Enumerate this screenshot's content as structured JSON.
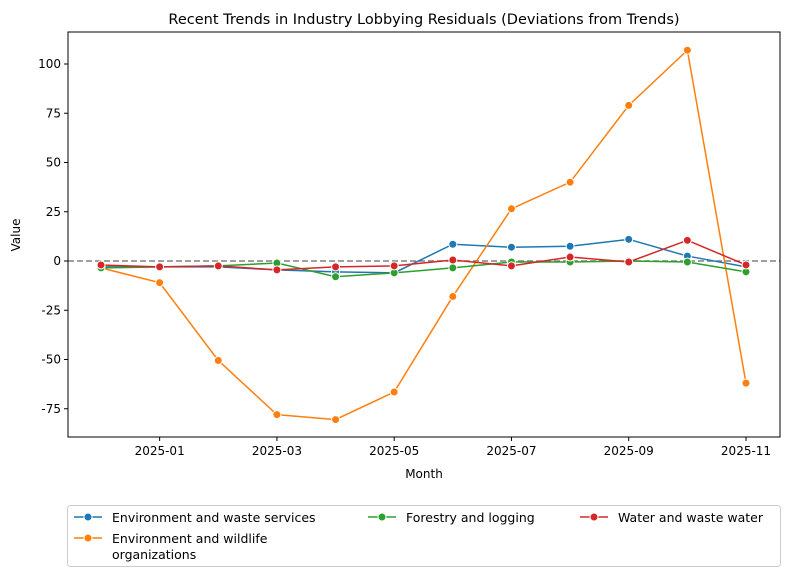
{
  "chart_data": {
    "type": "line",
    "title": "Recent Trends in Industry Lobbying Residuals (Deviations from Trends)",
    "xlabel": "Month",
    "ylabel": "Value",
    "x": [
      "2024-12",
      "2025-01",
      "2025-02",
      "2025-03",
      "2025-04",
      "2025-05",
      "2025-06",
      "2025-07",
      "2025-08",
      "2025-09",
      "2025-10",
      "2025-11"
    ],
    "xticks": [
      "2025-01",
      "2025-03",
      "2025-05",
      "2025-07",
      "2025-09",
      "2025-11"
    ],
    "yticks": [
      -75,
      -50,
      -25,
      0,
      25,
      50,
      75,
      100
    ],
    "ylim": [
      -90,
      116
    ],
    "reference_line": {
      "y": 0,
      "style": "dashed",
      "color": "#808080"
    },
    "grid": false,
    "legend_placement": "bottom",
    "series": [
      {
        "name": "Environment and waste services",
        "color": "#1f77b4",
        "values": [
          -3,
          -3,
          -3,
          -4.5,
          -5.5,
          -6,
          8.5,
          7,
          7.5,
          11,
          2.5,
          -3
        ]
      },
      {
        "name": "Environment and wildlife organizations",
        "color": "#ff7f0e",
        "values": [
          -3.5,
          -11,
          -50.5,
          -78,
          -80.5,
          -66.5,
          -18,
          26.5,
          40,
          79,
          107,
          -62
        ]
      },
      {
        "name": "Forestry and logging",
        "color": "#2ca02c",
        "values": [
          -3.5,
          -3,
          -2.5,
          -1,
          -8,
          -6,
          -3.5,
          -0.5,
          -0.5,
          0,
          -0.5,
          -5.5
        ]
      },
      {
        "name": "Water and waste water",
        "color": "#d62728",
        "values": [
          -2,
          -3,
          -2.5,
          -4.5,
          -3,
          -2.5,
          0.5,
          -2.5,
          2,
          -0.5,
          10.5,
          -2
        ]
      }
    ]
  }
}
